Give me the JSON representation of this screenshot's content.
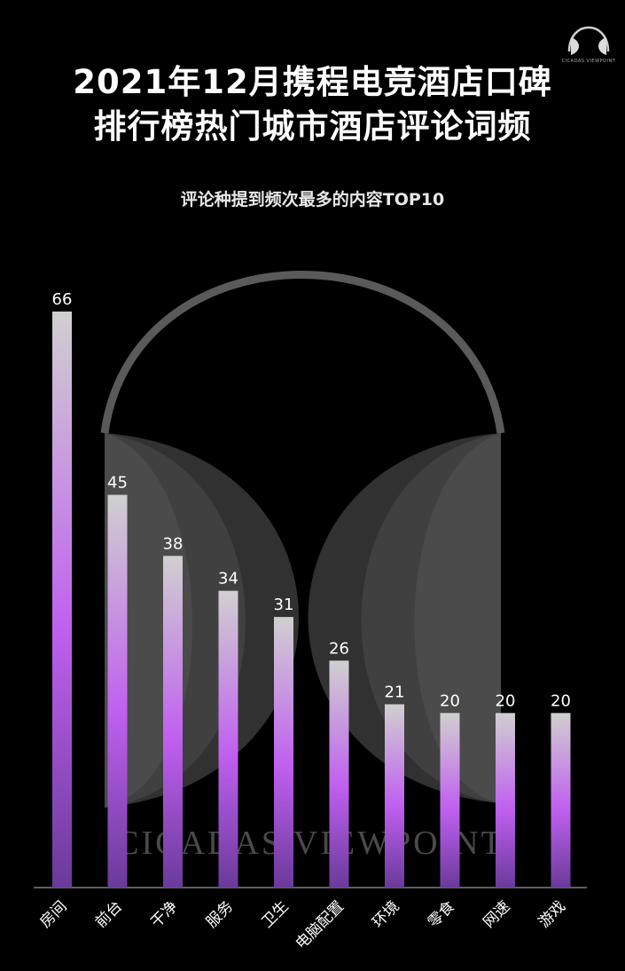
{
  "chart_data": {
    "type": "bar",
    "title": "2021年12月携程电竞酒店口碑排行榜热门城市酒店评论词频",
    "title_lines": [
      "2021年12月携程电竞酒店口碑",
      "排行榜热门城市酒店评论词频"
    ],
    "subtitle": "评论种提到频次最多的内容TOP10",
    "categories": [
      "房间",
      "前台",
      "干净",
      "服务",
      "卫生",
      "电脑配置",
      "环境",
      "零食",
      "网速",
      "游戏"
    ],
    "values": [
      66,
      45,
      38,
      34,
      31,
      26,
      21,
      20,
      20,
      20
    ],
    "ylim": [
      0,
      66
    ],
    "grid": false,
    "legend": "none",
    "bar_gradient": [
      "#d0d0d0",
      "#c060f0",
      "#6a3a9a"
    ]
  },
  "brand": {
    "logo_text": "CICADAS VIEWPOINT",
    "watermark": "CICADAS VIEWPOINT"
  }
}
